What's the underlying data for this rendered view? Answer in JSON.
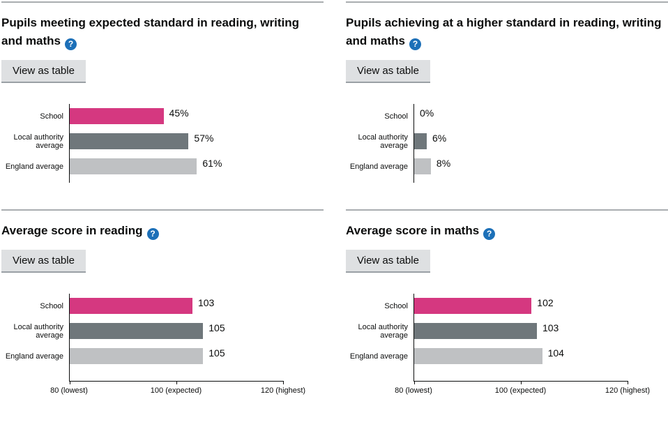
{
  "shared": {
    "view_as_table": "View as table",
    "help_glyph": "?"
  },
  "colors": {
    "school_bar": "#d53880",
    "local_authority_bar": "#6f777b",
    "england_bar": "#bfc1c3",
    "bar_colors": [
      "#d53880",
      "#6f777b",
      "#bfc1c3"
    ],
    "help_icon_bg": "#1d70b8",
    "button_bg": "#dee0e2",
    "button_shadow": "#9aa0a5",
    "divider": "#a9adb0",
    "text": "#0b0c0c"
  },
  "chart_data": [
    {
      "type": "bar",
      "orientation": "horizontal",
      "title": "Pupils meeting expected standard in reading, writing and maths",
      "categories": [
        "School",
        "Local authority average",
        "England average"
      ],
      "values": [
        45,
        57,
        61
      ],
      "value_labels": [
        "45%",
        "57%",
        "61%"
      ],
      "xlim": [
        0,
        100
      ],
      "grid": false,
      "legend": false,
      "axis_ticks": []
    },
    {
      "type": "bar",
      "orientation": "horizontal",
      "title": "Pupils achieving at a higher standard in reading, writing and maths",
      "categories": [
        "School",
        "Local authority average",
        "England average"
      ],
      "values": [
        0,
        6,
        8
      ],
      "value_labels": [
        "0%",
        "6%",
        "8%"
      ],
      "xlim": [
        0,
        100
      ],
      "grid": false,
      "legend": false,
      "axis_ticks": []
    },
    {
      "type": "bar",
      "orientation": "horizontal",
      "title": "Average score in reading",
      "categories": [
        "School",
        "Local authority average",
        "England average"
      ],
      "values": [
        103,
        105,
        105
      ],
      "value_labels": [
        "103",
        "105",
        "105"
      ],
      "xlim": [
        80,
        120
      ],
      "grid": false,
      "legend": false,
      "axis_ticks": [
        {
          "value": 80,
          "label": "80 (lowest)"
        },
        {
          "value": 100,
          "label": "100 (expected)"
        },
        {
          "value": 120,
          "label": "120 (highest)"
        }
      ]
    },
    {
      "type": "bar",
      "orientation": "horizontal",
      "title": "Average score in maths",
      "categories": [
        "School",
        "Local authority average",
        "England average"
      ],
      "values": [
        102,
        103,
        104
      ],
      "value_labels": [
        "102",
        "103",
        "104"
      ],
      "xlim": [
        80,
        120
      ],
      "grid": false,
      "legend": false,
      "axis_ticks": [
        {
          "value": 80,
          "label": "80 (lowest)"
        },
        {
          "value": 100,
          "label": "100 (expected)"
        },
        {
          "value": 120,
          "label": "120 (highest)"
        }
      ]
    }
  ]
}
